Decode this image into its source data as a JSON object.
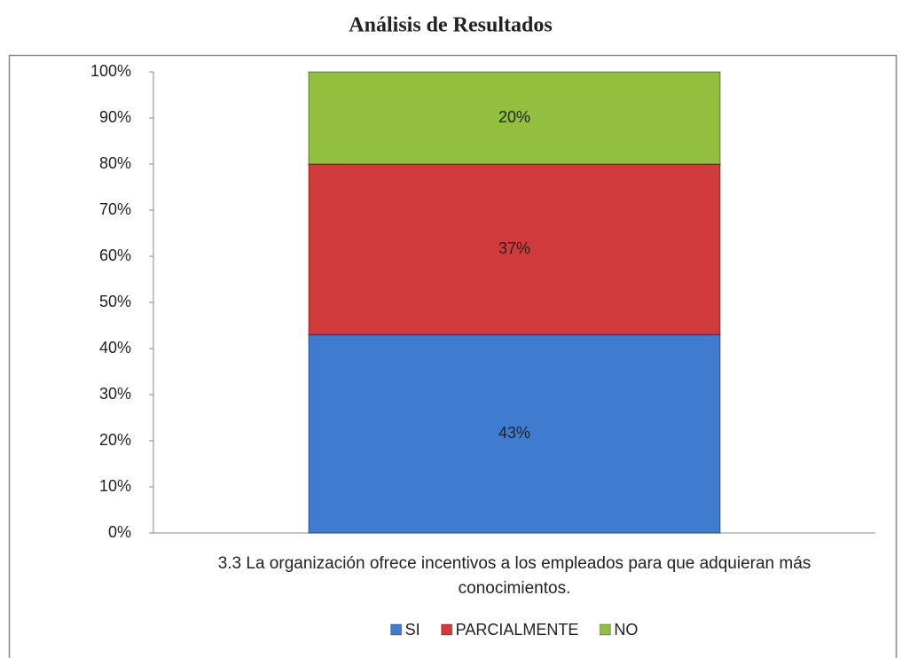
{
  "chart_data": {
    "type": "stacked_bar",
    "title": "Análisis de Resultados",
    "categories": [
      "3.3 La organización ofrece incentivos a los empleados para que adquieran más conocimientos."
    ],
    "series": [
      {
        "name": "SI",
        "color": "#3f7cd0",
        "values": [
          43
        ],
        "value_labels": [
          "43%"
        ]
      },
      {
        "name": "PARCIALMENTE",
        "color": "#d23b3b",
        "values": [
          37
        ],
        "value_labels": [
          "37%"
        ]
      },
      {
        "name": "NO",
        "color": "#93bf3e",
        "values": [
          20
        ],
        "value_labels": [
          "20%"
        ]
      }
    ],
    "ylim": [
      0,
      100
    ],
    "yticks": [
      {
        "value": 0,
        "label": "0%"
      },
      {
        "value": 10,
        "label": "10%"
      },
      {
        "value": 20,
        "label": "20%"
      },
      {
        "value": 30,
        "label": "30%"
      },
      {
        "value": 40,
        "label": "40%"
      },
      {
        "value": 50,
        "label": "50%"
      },
      {
        "value": 60,
        "label": "60%"
      },
      {
        "value": 70,
        "label": "70%"
      },
      {
        "value": 80,
        "label": "80%"
      },
      {
        "value": 90,
        "label": "90%"
      },
      {
        "value": 100,
        "label": "100%"
      }
    ],
    "grid": false,
    "legend": "bottom"
  }
}
